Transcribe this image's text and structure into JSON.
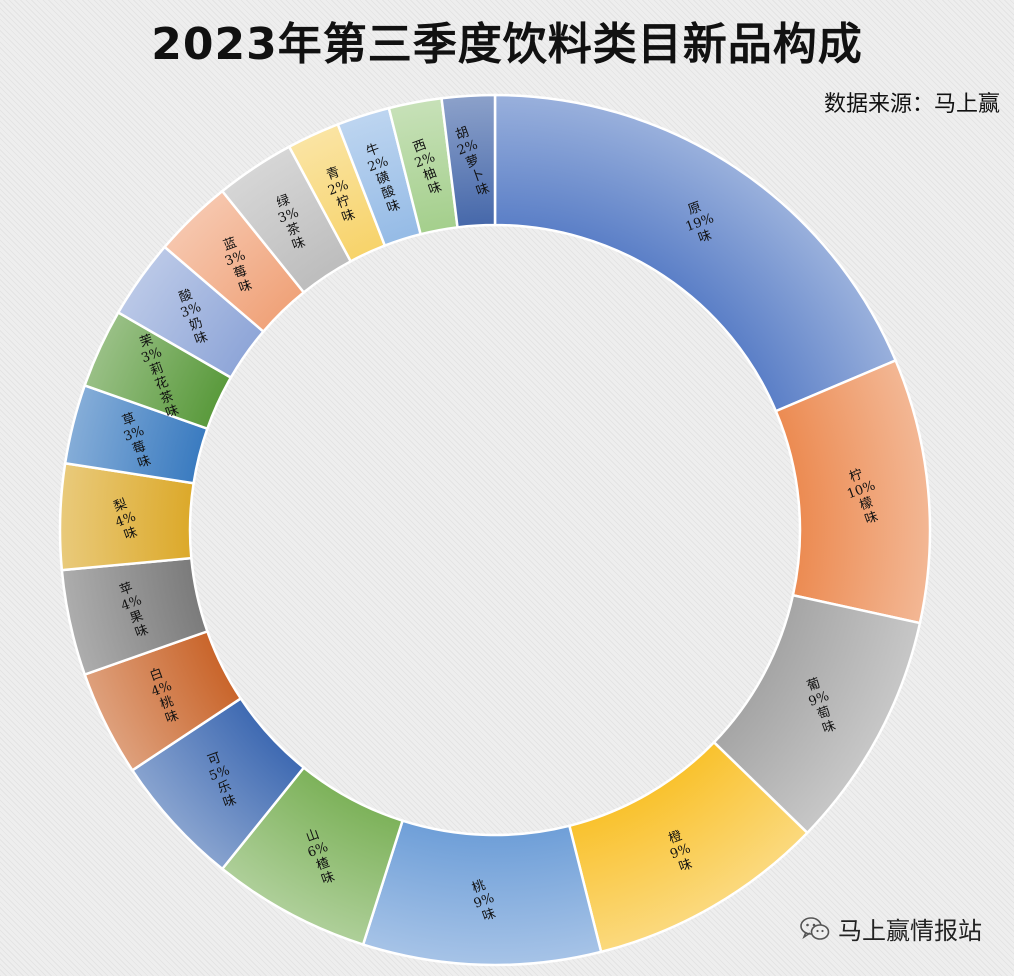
{
  "title": "2023年第三季度饮料类目新品构成",
  "source_note": "数据来源：马上赢",
  "watermark": {
    "text": "马上赢情报站",
    "icon": "wechat-icon"
  },
  "chart_data": {
    "type": "pie",
    "donut": true,
    "title": "2023年第三季度饮料类目新品构成",
    "unit": "%",
    "categories": [
      "原味",
      "柠檬味",
      "葡萄味",
      "橙味",
      "桃味",
      "山楂味",
      "可乐味",
      "白桃味",
      "苹果味",
      "梨味",
      "草莓味",
      "茉莉花茶味",
      "酸奶味",
      "蓝莓味",
      "绿茶味",
      "青柠味",
      "牛磺酸味",
      "西柚味",
      "胡萝卜味"
    ],
    "values": [
      19,
      10,
      9,
      9,
      9,
      6,
      5,
      4,
      4,
      4,
      3,
      3,
      3,
      3,
      3,
      2,
      2,
      2,
      2
    ],
    "value_labels": [
      "19%",
      "10%",
      "9%",
      "9%",
      "9%",
      "6%",
      "5%",
      "4%",
      "4%",
      "4%",
      "3%",
      "3%",
      "3%",
      "3%",
      "3%",
      "2%",
      "2%",
      "2%",
      "2%"
    ],
    "colors": [
      "#5b7fc7",
      "#ec8b52",
      "#a5a5a5",
      "#f9c22e",
      "#6f9fd8",
      "#7db25a",
      "#3f6ab2",
      "#c9652b",
      "#7b7b7b",
      "#dca92a",
      "#3a7bc0",
      "#5a9a3c",
      "#8fa6d8",
      "#f0a37a",
      "#bdbdbd",
      "#f7d36a",
      "#95bbe6",
      "#a4cf8c",
      "#4668aa"
    ]
  }
}
